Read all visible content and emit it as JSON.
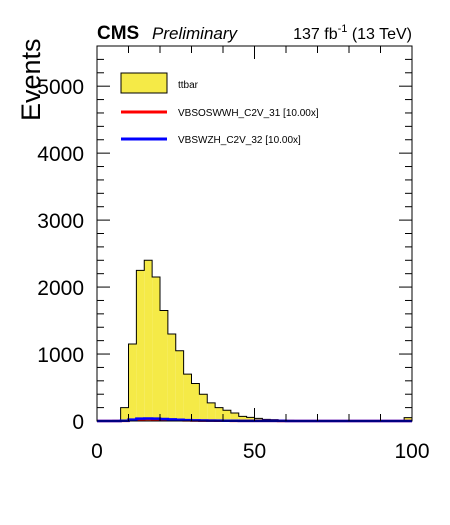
{
  "header": {
    "experiment": "CMS",
    "status": "Preliminary",
    "lumi_prefix": "137 fb",
    "lumi_exp": "-1",
    "lumi_suffix": " (13 TeV)"
  },
  "chart_data": {
    "type": "bar",
    "title": "",
    "xlabel": "",
    "ylabel": "Events",
    "xlim": [
      0,
      100
    ],
    "ylim": [
      0,
      5600
    ],
    "bin_width": 2.5,
    "x_ticks": [
      0,
      50,
      100
    ],
    "y_ticks": [
      0,
      1000,
      2000,
      3000,
      4000,
      5000
    ],
    "grid": false,
    "legend_position": "top-left",
    "series": [
      {
        "name": "ttbar",
        "style": "filled-histogram",
        "color": "#f5ea47",
        "edge_color": "#000000",
        "bin_edges": [
          0,
          2.5,
          5,
          7.5,
          10,
          12.5,
          15,
          17.5,
          20,
          22.5,
          25,
          27.5,
          30,
          32.5,
          35,
          37.5,
          40,
          42.5,
          45,
          47.5,
          50,
          52.5,
          55,
          57.5,
          60,
          62.5,
          65,
          67.5,
          70,
          72.5,
          75,
          77.5,
          80,
          82.5,
          85,
          87.5,
          90,
          92.5,
          95,
          97.5,
          100
        ],
        "values": [
          0,
          0,
          10,
          200,
          1150,
          2250,
          2400,
          2150,
          1650,
          1300,
          1050,
          700,
          560,
          400,
          270,
          200,
          160,
          120,
          70,
          55,
          40,
          25,
          20,
          15,
          10,
          8,
          6,
          5,
          4,
          3,
          2,
          2,
          1,
          1,
          1,
          1,
          1,
          1,
          1,
          50
        ]
      },
      {
        "name": "VBSOSWWH_C2V_31 [10.00x]",
        "style": "line-histogram",
        "color": "#ff0000",
        "values": [
          0,
          0,
          0,
          2,
          15,
          25,
          28,
          26,
          22,
          18,
          14,
          10,
          8,
          6,
          5,
          4,
          3,
          2,
          2,
          1,
          1,
          1,
          1,
          0,
          0,
          0,
          0,
          0,
          0,
          0,
          0,
          0,
          0,
          0,
          0,
          0,
          0,
          0,
          0,
          0
        ]
      },
      {
        "name": "VBSWZH_C2V_32 [10.00x]",
        "style": "line-histogram",
        "color": "#0000ff",
        "values": [
          0,
          0,
          0,
          3,
          20,
          35,
          38,
          36,
          30,
          24,
          18,
          14,
          10,
          8,
          6,
          5,
          4,
          3,
          2,
          2,
          1,
          1,
          1,
          1,
          0,
          0,
          0,
          0,
          0,
          0,
          0,
          0,
          0,
          0,
          0,
          0,
          0,
          0,
          0,
          0
        ]
      }
    ]
  }
}
